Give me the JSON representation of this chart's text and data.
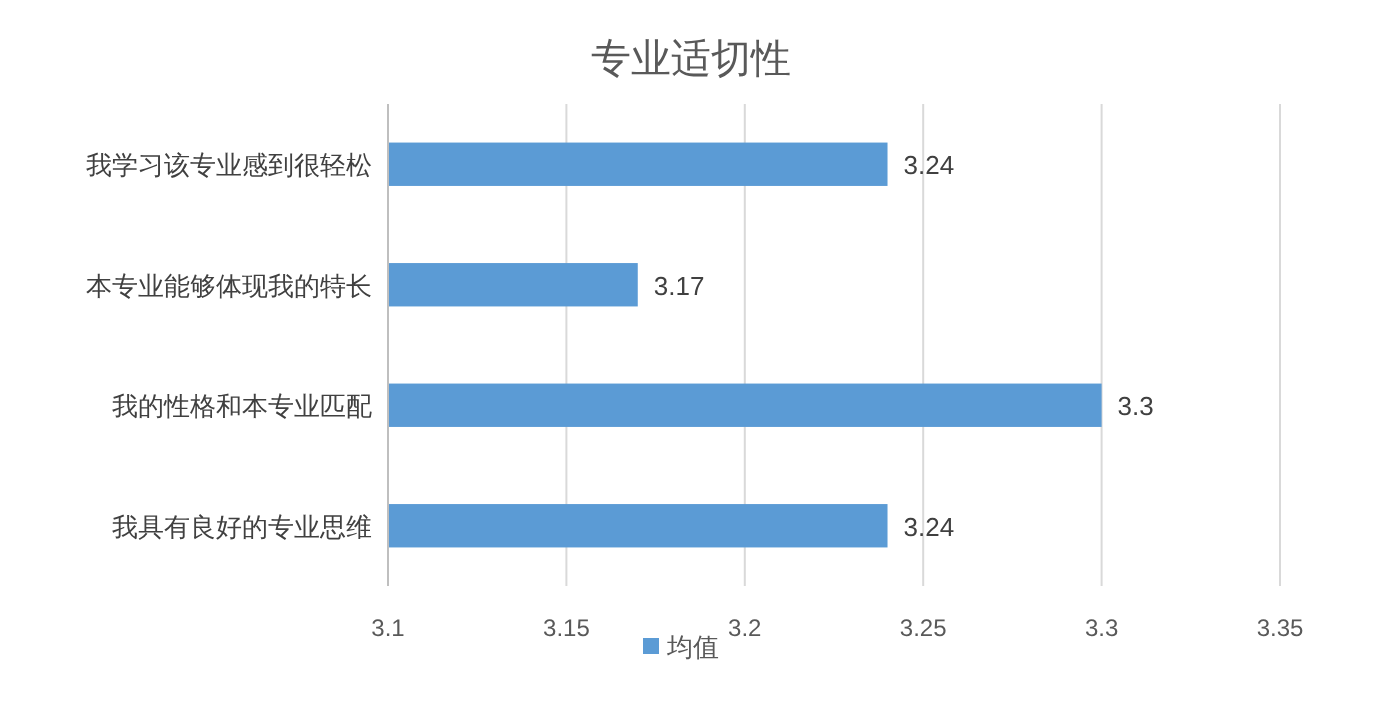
{
  "chart_data": {
    "type": "bar",
    "title": "专业适切性",
    "orientation": "horizontal",
    "categories": [
      "我学习该专业感到很轻松",
      "本专业能够体现我的特长",
      "我的性格和本专业匹配",
      "我具有良好的专业思维"
    ],
    "series": [
      {
        "name": "均值",
        "color": "#5b9bd5",
        "values": [
          3.24,
          3.17,
          3.3,
          3.24
        ]
      }
    ],
    "xlim": [
      3.1,
      3.35
    ],
    "xticks": [
      3.1,
      3.15,
      3.2,
      3.25,
      3.3,
      3.35
    ],
    "grid": "x",
    "legend": "bottom",
    "data_labels": true
  }
}
